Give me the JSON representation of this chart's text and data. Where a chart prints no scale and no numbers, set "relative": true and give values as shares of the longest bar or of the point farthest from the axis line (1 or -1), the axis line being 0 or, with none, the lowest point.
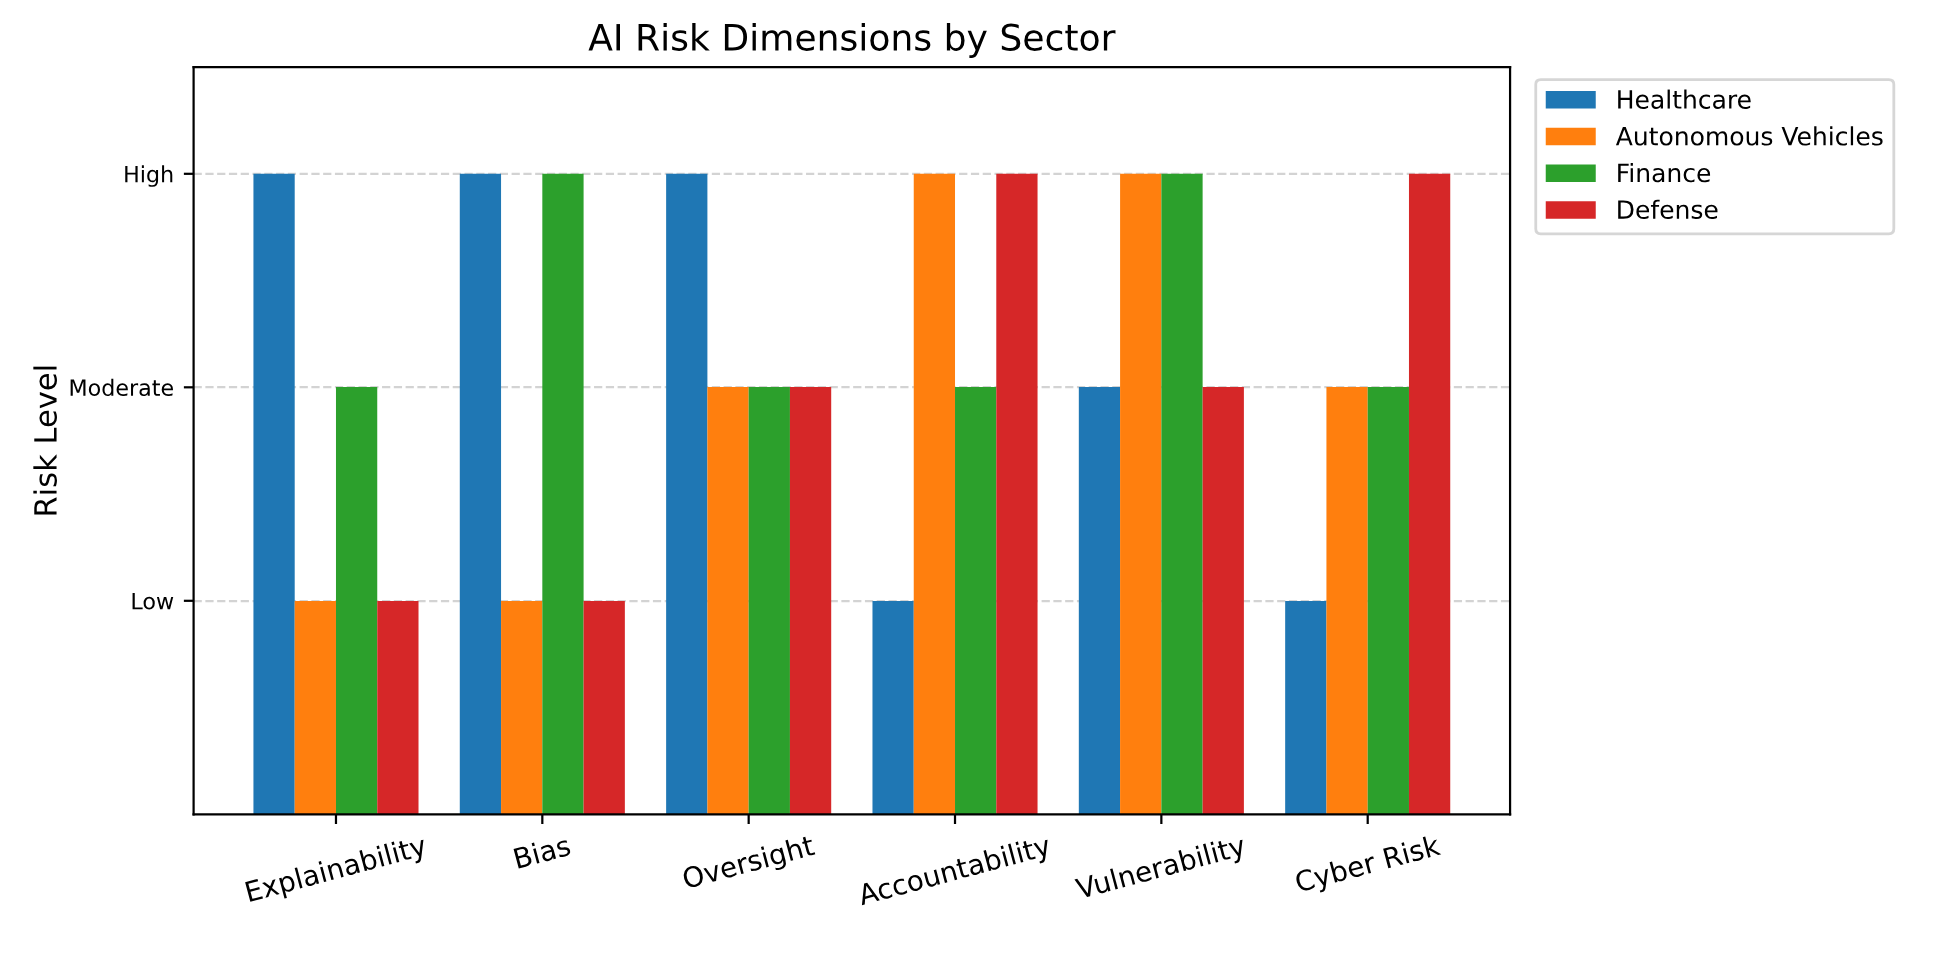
{
  "chart_data": {
    "type": "bar",
    "title": "AI Risk Dimensions by Sector",
    "ylabel": "Risk Level",
    "categories": [
      "Explainability",
      "Bias",
      "Oversight",
      "Accountability",
      "Vulnerability",
      "Cyber Risk"
    ],
    "y_categories": [
      "High",
      "Moderate",
      "Low"
    ],
    "relative": true,
    "series": [
      {
        "name": "Healthcare",
        "color": "#1f77b4",
        "values": [
          1,
          1,
          1,
          0.333,
          0.667,
          0.333
        ]
      },
      {
        "name": "Autonomous Vehicles",
        "color": "#ff7f0e",
        "values": [
          0.333,
          0.333,
          0.667,
          1,
          1,
          0.667
        ]
      },
      {
        "name": "Finance",
        "color": "#2ca02c",
        "values": [
          0.667,
          1,
          0.667,
          0.667,
          1,
          0.667
        ]
      },
      {
        "name": "Defense",
        "color": "#d62728",
        "values": [
          0.333,
          0.333,
          0.667,
          1,
          0.667,
          1
        ]
      }
    ],
    "ref_lines": [
      {
        "axis": "y",
        "value": 0.333,
        "color": "#d3d3d3",
        "line_style": "dashed"
      },
      {
        "axis": "y",
        "value": 0.667,
        "color": "#d3d3d3",
        "line_style": "dashed"
      },
      {
        "axis": "y",
        "value": 1,
        "color": "#d3d3d3",
        "line_style": "dashed"
      }
    ],
    "legend": "top right"
  }
}
